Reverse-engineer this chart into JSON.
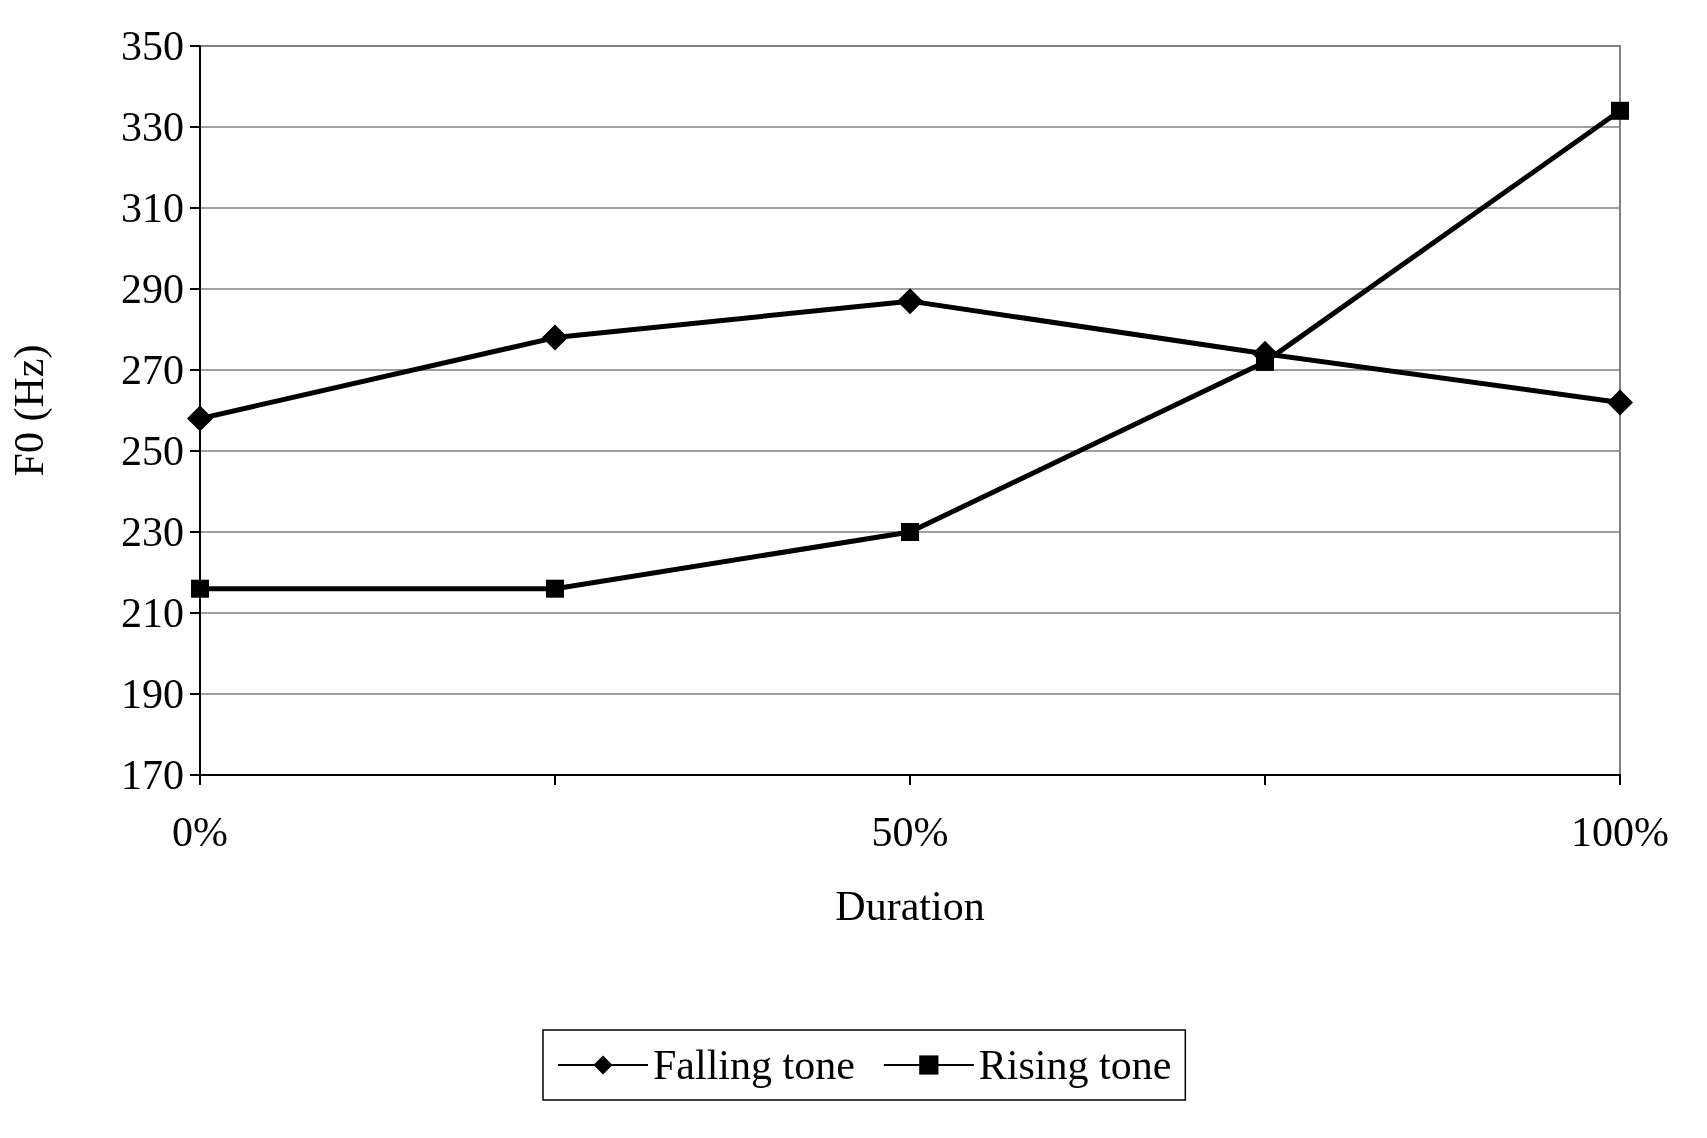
{
  "chart_data": {
    "type": "line",
    "xlabel": "Duration",
    "ylabel": "F0 (Hz)",
    "categories": [
      "0%",
      null,
      "50%",
      null,
      "100%"
    ],
    "series": [
      {
        "name": "Falling tone",
        "color": "#000000",
        "marker": "diamond",
        "values": [
          258,
          278,
          287,
          274,
          262
        ]
      },
      {
        "name": "Rising tone",
        "color": "#000000",
        "marker": "square",
        "values": [
          216,
          216,
          230,
          272,
          334
        ]
      }
    ],
    "ylim": [
      170,
      350
    ],
    "yticks": [
      170,
      190,
      210,
      230,
      250,
      270,
      290,
      310,
      330,
      350
    ],
    "grid": "y",
    "legend": "bottom",
    "line_style": "solid"
  }
}
